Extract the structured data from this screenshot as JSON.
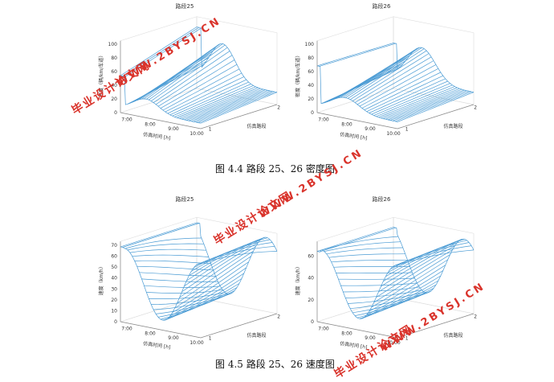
{
  "chart_data": [
    {
      "type": "surface",
      "title": "路段25",
      "xlabel": "仿真时间 [h]",
      "ylabel": "仿真路段",
      "zlabel": "密度（辆/km/车道）",
      "x_ticks": [
        "7:00",
        "8:00",
        "9:00",
        "10:00"
      ],
      "y_ticks": [
        "1",
        "2"
      ],
      "z_ticks": [
        "0",
        "20",
        "40",
        "60",
        "80",
        "100"
      ],
      "zlim": [
        0,
        100
      ]
    },
    {
      "type": "surface",
      "title": "路段26",
      "xlabel": "仿真时间 [h]",
      "ylabel": "仿真路段",
      "zlabel": "密度（辆/km/车道）",
      "x_ticks": [
        "7:00",
        "8:00",
        "9:00",
        "10:00"
      ],
      "y_ticks": [
        "1",
        "2"
      ],
      "z_ticks": [
        "0",
        "20",
        "40",
        "60",
        "80",
        "100"
      ],
      "zlim": [
        0,
        100
      ]
    },
    {
      "type": "surface",
      "title": "路段25",
      "xlabel": "仿真时间 [h]",
      "ylabel": "仿真路段",
      "zlabel": "速度（km/h）",
      "x_ticks": [
        "7:00",
        "8:00",
        "9:00",
        "10:00"
      ],
      "y_ticks": [
        "1",
        "2"
      ],
      "z_ticks": [
        "0",
        "10",
        "20",
        "30",
        "40",
        "50",
        "60",
        "70"
      ],
      "zlim": [
        0,
        70
      ]
    },
    {
      "type": "surface",
      "title": "路段26",
      "xlabel": "仿真时间 [h]",
      "ylabel": "仿真路段",
      "zlabel": "速度（km/h）",
      "x_ticks": [
        "7:00",
        "8:00",
        "9:00",
        "10:00"
      ],
      "y_ticks": [
        "1",
        "2"
      ],
      "z_ticks": [
        "0",
        "20",
        "40",
        "60"
      ],
      "zlim": [
        0,
        70
      ]
    }
  ],
  "captions": {
    "fig44": "图 4.4 路段 25、26 密度图",
    "fig45": "图 4.5 路段 25、26 速度图"
  },
  "watermark": {
    "cn": "毕业设计论文网",
    "url": "WWW.2BYSJ.CN"
  },
  "colors": {
    "surface": "#4a9bd4",
    "axis": "#888888",
    "grid": "#dddddd",
    "watermark": "#d9332b"
  }
}
